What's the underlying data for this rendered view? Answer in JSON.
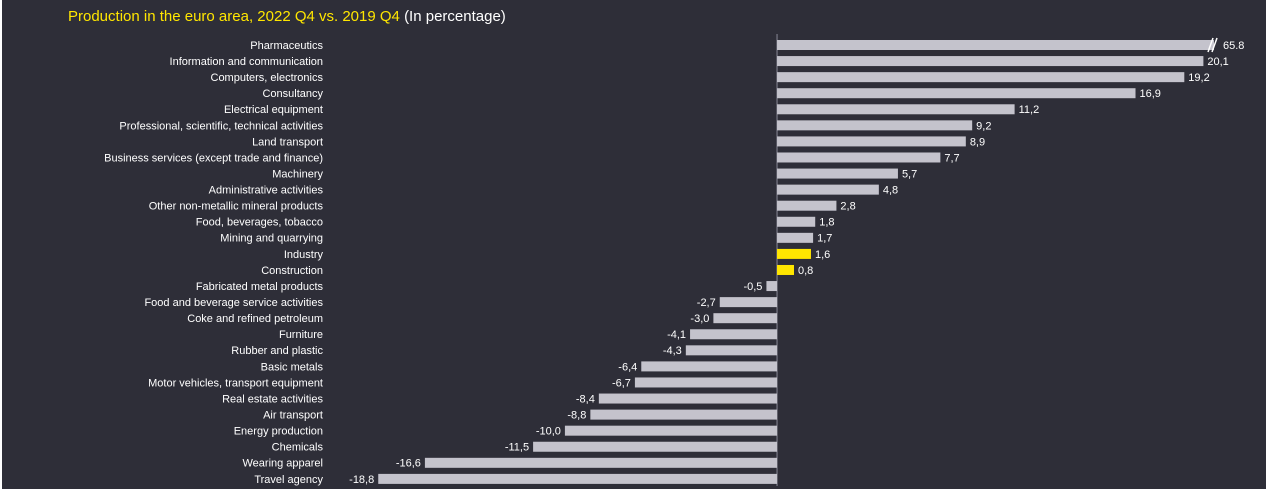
{
  "chart_data": {
    "type": "bar",
    "orientation": "horizontal",
    "title": "Production in the euro area, 2022 Q4 vs. 2019 Q4",
    "subtitle": "(In percentage)",
    "categories": [
      "Pharmaceutics",
      "Information and communication",
      "Computers, electronics",
      "Consultancy",
      "Electrical equipment",
      "Professional, scientific, technical activities",
      "Land transport",
      "Business services (except trade and finance)",
      "Machinery",
      "Administrative activities",
      "Other non-metallic mineral products",
      "Food, beverages, tobacco",
      "Mining and quarrying",
      "Industry",
      "Construction",
      "Fabricated metal products",
      "Food and beverage service activities",
      "Coke and refined petroleum",
      "Furniture",
      "Rubber and plastic",
      "Basic metals",
      "Motor vehicles, transport equipment",
      "Real estate activities",
      "Air transport",
      "Energy production",
      "Chemicals",
      "Wearing apparel",
      "Travel agency"
    ],
    "values": [
      65.8,
      20.1,
      19.2,
      16.9,
      11.2,
      9.2,
      8.9,
      7.7,
      5.7,
      4.8,
      2.8,
      1.8,
      1.7,
      1.6,
      0.8,
      -0.5,
      -2.7,
      -3.0,
      -4.1,
      -4.3,
      -6.4,
      -6.7,
      -8.4,
      -8.8,
      -10.0,
      -11.5,
      -16.6,
      -18.8
    ],
    "value_labels": [
      "65.8",
      "20,1",
      "19,2",
      "16,9",
      "11,2",
      "9,2",
      "8,9",
      "7,7",
      "5,7",
      "4,8",
      "2,8",
      "1,8",
      "1,7",
      "1,6",
      "0,8",
      "-0,5",
      "-2,7",
      "-3,0",
      "-4,1",
      "-4,3",
      "-6,4",
      "-6,7",
      "-8,4",
      "-8,8",
      "-10,0",
      "-11,5",
      "-16,6",
      "-18,8"
    ],
    "colors": [
      "#c4c3cc",
      "#c4c3cc",
      "#c4c3cc",
      "#c4c3cc",
      "#c4c3cc",
      "#c4c3cc",
      "#c4c3cc",
      "#c4c3cc",
      "#c4c3cc",
      "#c4c3cc",
      "#c4c3cc",
      "#c4c3cc",
      "#c4c3cc",
      "#ffe600",
      "#ffe600",
      "#c4c3cc",
      "#c4c3cc",
      "#c4c3cc",
      "#c4c3cc",
      "#c4c3cc",
      "#c4c3cc",
      "#c4c3cc",
      "#c4c3cc",
      "#c4c3cc",
      "#c4c3cc",
      "#c4c3cc",
      "#c4c3cc",
      "#c4c3cc"
    ],
    "xlim": [
      -19,
      20.6
    ],
    "axis_break": true
  }
}
